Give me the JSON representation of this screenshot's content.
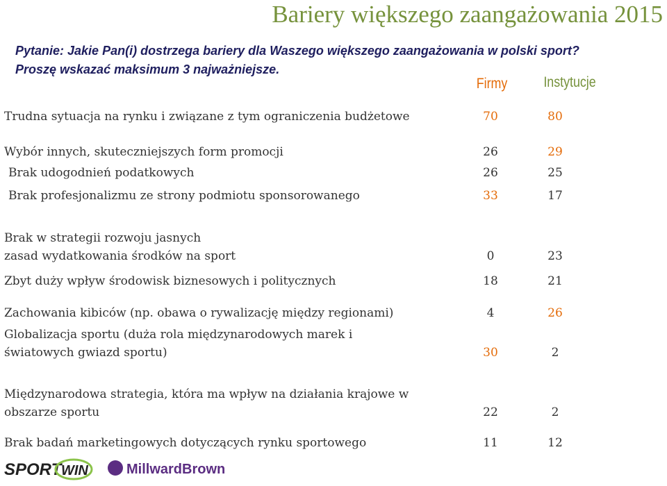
{
  "header": {
    "title": "Bariery większego zaangażowania 2015",
    "question": [
      "Pytanie: Jakie Pan(i) dostrzega bariery dla Waszego większego zaangażowania w polski sport?",
      "Proszę wskazać maksimum 3 najważniejsze."
    ]
  },
  "table": {
    "columns": [
      "Firmy",
      "Instytucje"
    ],
    "column_colors": [
      "#e46c0a",
      "#76923c"
    ],
    "rows": [
      {
        "label": [
          "Trudna sytuacja na rynku i związane z tym ograniczenia budżetowe"
        ],
        "firmy": 70,
        "instytucje": 80,
        "colors": [
          "#e46c0a",
          "#e46c0a"
        ]
      },
      {
        "label": [
          "Wybór innych, skuteczniejszych form promocji"
        ],
        "firmy": 26,
        "instytucje": 29,
        "colors": [
          "#333333",
          "#e46c0a"
        ]
      },
      {
        "label": [
          "Brak udogodnień podatkowych"
        ],
        "firmy": 26,
        "instytucje": 25,
        "colors": [
          "#333333",
          "#333333"
        ]
      },
      {
        "label": [
          "Brak profesjonalizmu ze strony podmiotu sponsorowanego"
        ],
        "firmy": 33,
        "instytucje": 17,
        "colors": [
          "#e46c0a",
          "#333333"
        ]
      },
      {
        "label": [
          "Brak w strategii rozwoju jasnych",
          "zasad wydatkowania środków na sport"
        ],
        "firmy": 0,
        "instytucje": 23,
        "colors": [
          "#333333",
          "#333333"
        ]
      },
      {
        "label": [
          "Zbyt duży wpływ środowisk biznesowych i politycznych"
        ],
        "firmy": 18,
        "instytucje": 21,
        "colors": [
          "#333333",
          "#333333"
        ]
      },
      {
        "label": [
          "Zachowania kibiców (np. obawa o rywalizację między regionami)"
        ],
        "firmy": 4,
        "instytucje": 26,
        "colors": [
          "#333333",
          "#e46c0a"
        ]
      },
      {
        "label": [
          "Globalizacja sportu (duża rola międzynarodowych marek i",
          "światowych gwiazd sportu)"
        ],
        "firmy": 30,
        "instytucje": 2,
        "colors": [
          "#e46c0a",
          "#333333"
        ]
      },
      {
        "label": [
          "Międzynarodowa strategia, która ma wpływ na działania krajowe w",
          "obszarze sportu"
        ],
        "firmy": 22,
        "instytucje": 2,
        "colors": [
          "#333333",
          "#333333"
        ]
      },
      {
        "label": [
          "Brak badań marketingowych dotyczących rynku sportowego"
        ],
        "firmy": 11,
        "instytucje": 12,
        "colors": [
          "#333333",
          "#333333"
        ]
      }
    ]
  },
  "footer": {
    "logos": [
      "SPORT",
      "WIN",
      "MillwardBrown"
    ]
  }
}
